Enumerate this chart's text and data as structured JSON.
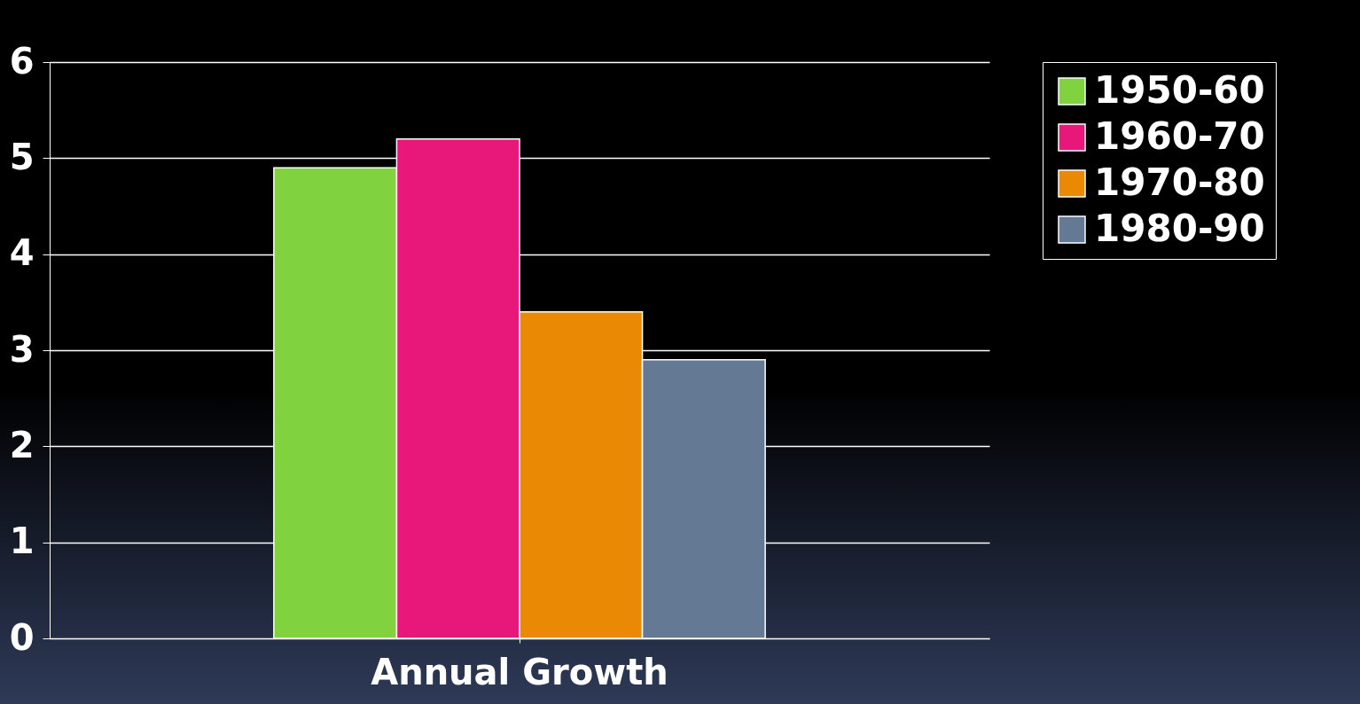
{
  "chart_data": {
    "type": "bar",
    "categories": [
      "Annual Growth"
    ],
    "series": [
      {
        "name": "1950-60",
        "color": "#80d23e",
        "values": [
          4.9
        ]
      },
      {
        "name": "1960-70",
        "color": "#e8177a",
        "values": [
          5.2
        ]
      },
      {
        "name": "1970-80",
        "color": "#e98904",
        "values": [
          3.4
        ]
      },
      {
        "name": "1980-90",
        "color": "#647a94",
        "values": [
          2.9
        ]
      }
    ],
    "ylim": [
      0,
      6
    ],
    "yticks": [
      0,
      1,
      2,
      3,
      4,
      5,
      6
    ],
    "grid": "y",
    "legend": "right"
  }
}
